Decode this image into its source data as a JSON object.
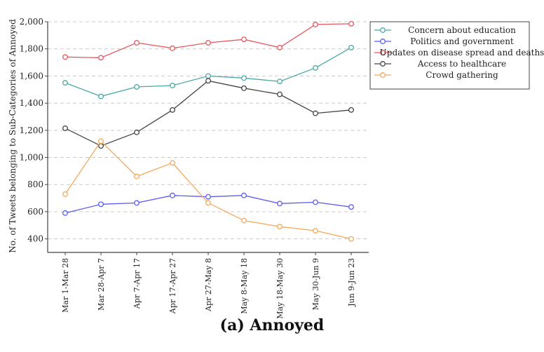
{
  "chart_data": {
    "type": "line",
    "categories": [
      "Mar 1-Mar 28",
      "Mar 28-Apr 7",
      "Apr 7-Apr 17",
      "Apr 17-Apr 27",
      "Apr 27-May 8",
      "May 8-May 18",
      "May 18-May 30",
      "May 30-Jun 9",
      "Jun 9-Jun 23"
    ],
    "series": [
      {
        "name": "Concern about education",
        "color": "#4aa8a3",
        "values": [
          1550,
          1450,
          1520,
          1530,
          1600,
          1585,
          1560,
          1660,
          1810
        ]
      },
      {
        "name": "Politics and government",
        "color": "#5b5cf0",
        "values": [
          590,
          655,
          665,
          720,
          710,
          720,
          660,
          670,
          635
        ]
      },
      {
        "name": "Updates on disease spread and deaths",
        "color": "#e8585f",
        "values": [
          1740,
          1735,
          1845,
          1805,
          1845,
          1870,
          1810,
          1980,
          1985
        ]
      },
      {
        "name": "Access to healthcare",
        "color": "#444444",
        "values": [
          1215,
          1085,
          1185,
          1350,
          1565,
          1510,
          1465,
          1325,
          1350
        ]
      },
      {
        "name": "Crowd gathering",
        "color": "#f5a85a",
        "values": [
          730,
          1120,
          860,
          960,
          665,
          535,
          490,
          460,
          400
        ]
      }
    ],
    "yticks": [
      "400",
      "600",
      "800",
      "1,000",
      "1,200",
      "1,400",
      "1,600",
      "1,800",
      "2,000"
    ],
    "ylabel": "No. of Tweets belonging to Sub-Categories of Annoyed",
    "ylim": [
      300,
      2000
    ],
    "grid": true,
    "legend_position": "top-right"
  },
  "caption": "(a) Annoyed"
}
